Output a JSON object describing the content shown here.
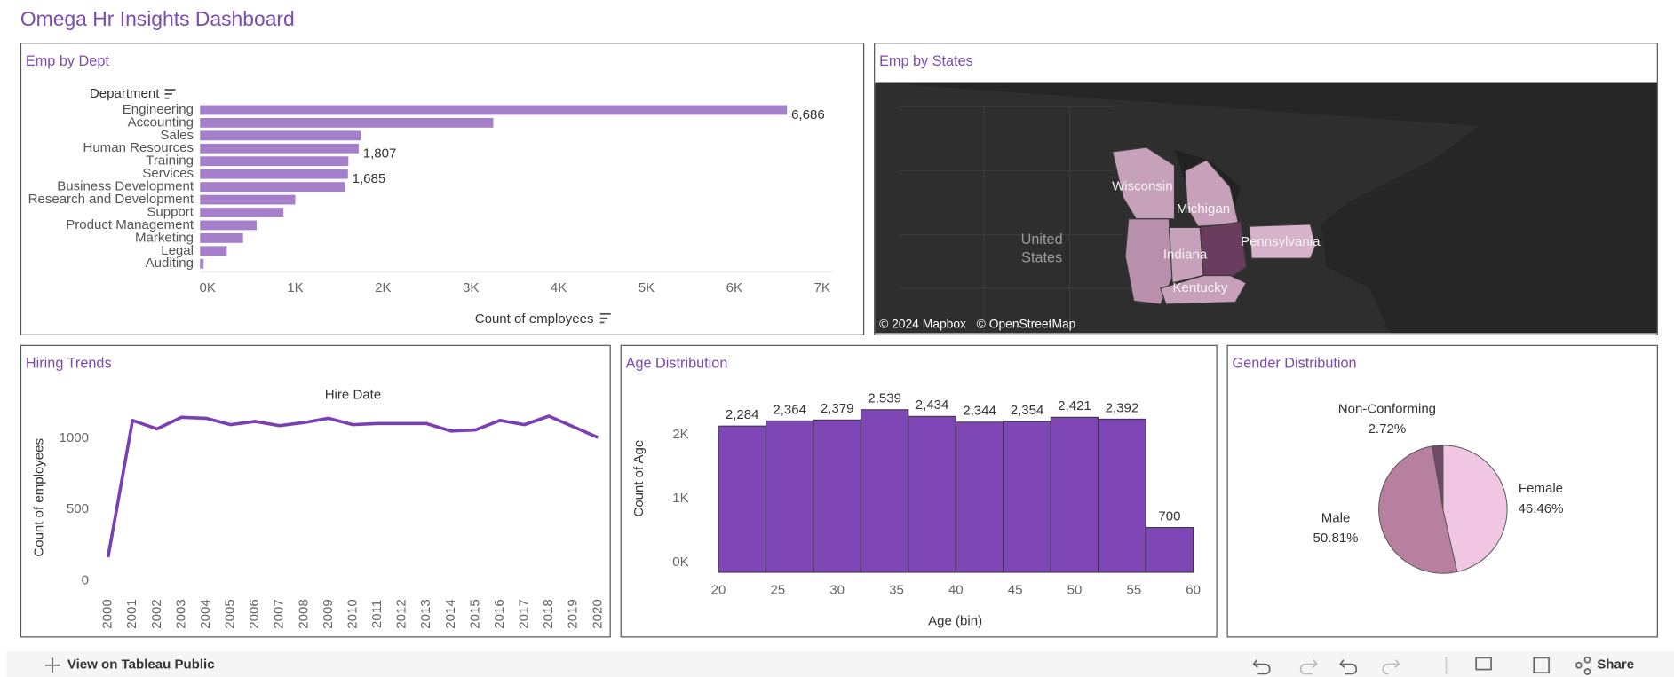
{
  "header": {
    "title": "Omega Hr Insights Dashboard"
  },
  "chart_data": [
    {
      "type": "bar",
      "orientation": "horizontal",
      "title": "Emp by Dept",
      "y_label": "Department",
      "x_label": "Count of employees",
      "categories": [
        "Engineering",
        "Accounting",
        "Sales",
        "Human Resources",
        "Training",
        "Services",
        "Business Development",
        "Research and Development",
        "Support",
        "Product Management",
        "Marketing",
        "Legal",
        "Auditing"
      ],
      "values": [
        6686,
        3340,
        1830,
        1807,
        1690,
        1685,
        1650,
        1085,
        950,
        645,
        490,
        305,
        40
      ],
      "value_labels": [
        "6,686",
        null,
        null,
        "1,807",
        null,
        "1,685",
        null,
        null,
        null,
        null,
        null,
        null,
        null
      ],
      "color": "#a57fca",
      "xlim": [
        0,
        7200
      ],
      "xticks": [
        {
          "value": 0,
          "label": "0K"
        },
        {
          "value": 1000,
          "label": "1K"
        },
        {
          "value": 2000,
          "label": "2K"
        },
        {
          "value": 3000,
          "label": "3K"
        },
        {
          "value": 4000,
          "label": "4K"
        },
        {
          "value": 5000,
          "label": "5K"
        },
        {
          "value": 6000,
          "label": "6K"
        },
        {
          "value": 7000,
          "label": "7K"
        }
      ],
      "grid": false
    },
    {
      "type": "map",
      "title": "Emp by States",
      "labels": [
        "Wisconsin",
        "Michigan",
        "Indiana",
        "Pennsylvania",
        "Kentucky"
      ],
      "country_lines": [
        "United",
        "States"
      ],
      "attribution": [
        "© 2024 Mapbox",
        "© OpenStreetMap"
      ]
    },
    {
      "type": "line",
      "title": "Hiring Trends",
      "x_label": "Hire Date",
      "y_label": "Count of employees",
      "categories": [
        "2000",
        "2001",
        "2002",
        "2003",
        "2004",
        "2005",
        "2006",
        "2007",
        "2008",
        "2009",
        "2010",
        "2011",
        "2012",
        "2013",
        "2014",
        "2015",
        "2016",
        "2017",
        "2018",
        "2019",
        "2020"
      ],
      "values": [
        164,
        1127,
        1067,
        1149,
        1142,
        1097,
        1120,
        1090,
        1112,
        1142,
        1097,
        1105,
        1105,
        1105,
        1052,
        1060,
        1127,
        1097,
        1157,
        1082,
        1007
      ],
      "color": "#7b3fb3",
      "ylim": [
        -70,
        1230
      ],
      "yticks": [
        0,
        500,
        1000
      ],
      "grid": false
    },
    {
      "type": "histogram",
      "title": "Age Distribution",
      "x_label": "Age (bin)",
      "y_label": "Count of Age",
      "bins": [
        20,
        24,
        28,
        32,
        36,
        40,
        44,
        48,
        52,
        56,
        60
      ],
      "values": [
        2284,
        2364,
        2379,
        2539,
        2434,
        2344,
        2354,
        2421,
        2392,
        700
      ],
      "value_labels": [
        "2,284",
        "2,364",
        "2,379",
        "2,539",
        "2,434",
        "2,344",
        "2,354",
        "2,421",
        "2,392",
        "700"
      ],
      "color": "#7e47b5",
      "xlim": [
        18.5,
        61.3
      ],
      "xticks": [
        20,
        25,
        30,
        35,
        40,
        45,
        50,
        55,
        60
      ],
      "ylim": [
        0,
        2850
      ],
      "yticks": [
        {
          "value": 0,
          "label": "0K"
        },
        {
          "value": 1000,
          "label": "1K"
        },
        {
          "value": 2000,
          "label": "2K"
        }
      ],
      "grid": false
    },
    {
      "type": "pie",
      "title": "Gender Distribution",
      "categories": [
        "Female",
        "Male",
        "Non-Conforming"
      ],
      "values": [
        46.46,
        50.81,
        2.72
      ],
      "value_labels": [
        "46.46%",
        "50.81%",
        "2.72%"
      ],
      "colors": [
        "#f0c6e3",
        "#b8809f",
        "#6e4a66"
      ]
    }
  ],
  "toolbar": {
    "view": "View on Tableau Public",
    "share": "Share"
  }
}
